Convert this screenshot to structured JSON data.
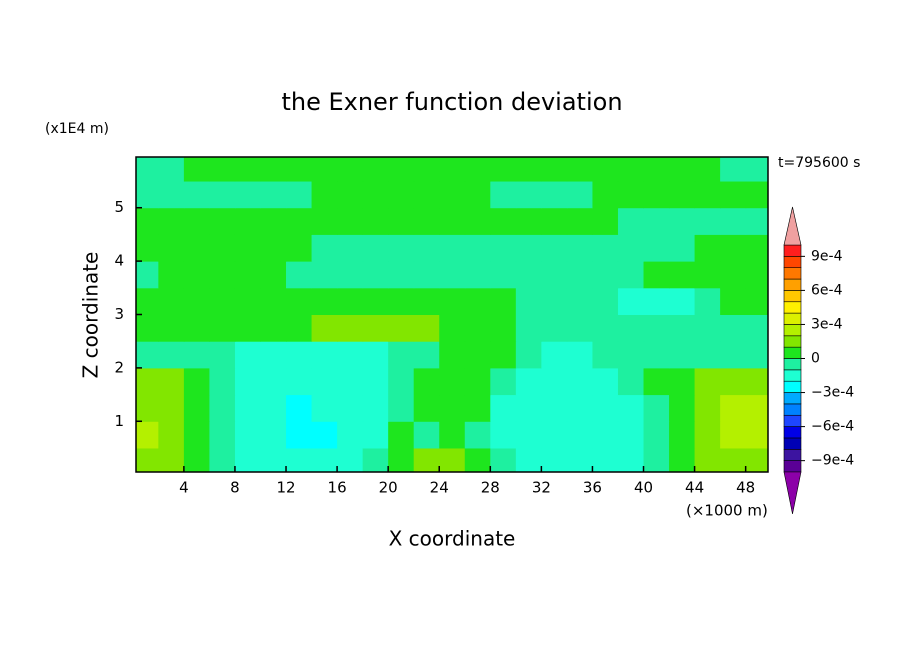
{
  "chart_data": {
    "type": "contour",
    "title": "the Exner function deviation",
    "xlabel": "X coordinate",
    "ylabel": "Z coordinate",
    "xunit": "(×1000 m)",
    "yunit": "(x1E4 m)",
    "annotation": "t=795600 s",
    "xlim": [
      0.25,
      49.75
    ],
    "ylim": [
      0.05,
      5.95
    ],
    "xticks": [
      4,
      8,
      12,
      16,
      20,
      24,
      28,
      32,
      36,
      40,
      44,
      48
    ],
    "yticks": [
      1,
      2,
      3,
      4,
      5
    ],
    "x": [
      1,
      3,
      5,
      7,
      9,
      11,
      13,
      15,
      17,
      19,
      21,
      23,
      25,
      27,
      29,
      31,
      33,
      35,
      37,
      39,
      41,
      43,
      45,
      47,
      49
    ],
    "y": [
      0.25,
      0.75,
      1.25,
      1.75,
      2.25,
      2.75,
      3.25,
      3.75,
      4.25,
      4.75,
      5.25,
      5.75
    ],
    "values": [
      [
        0.00015,
        0.00015,
        5e-05,
        -5e-05,
        -0.00015,
        -0.00015,
        -0.00015,
        -0.00015,
        -0.00015,
        -5e-05,
        5e-05,
        0.00015,
        0.00015,
        5e-05,
        -5e-05,
        -0.00015,
        -0.00015,
        -0.00015,
        -0.00015,
        -0.00015,
        -5e-05,
        5e-05,
        0.00015,
        0.00015,
        0.00015
      ],
      [
        0.00025,
        0.00015,
        5e-05,
        -5e-05,
        -0.00015,
        -0.00015,
        -0.00025,
        -0.00025,
        -0.00015,
        -0.00015,
        5e-05,
        -5e-05,
        5e-05,
        -5e-05,
        -0.00015,
        -0.00015,
        -0.00015,
        -0.00015,
        -0.00015,
        -0.00015,
        -5e-05,
        5e-05,
        0.00015,
        0.00025,
        0.00025
      ],
      [
        0.00015,
        0.00015,
        5e-05,
        -5e-05,
        -0.00015,
        -0.00015,
        -0.00025,
        -0.00015,
        -0.00015,
        -0.00015,
        -5e-05,
        5e-05,
        5e-05,
        5e-05,
        -0.00015,
        -0.00015,
        -0.00015,
        -0.00015,
        -0.00015,
        -0.00015,
        -5e-05,
        5e-05,
        0.00015,
        0.00025,
        0.00025
      ],
      [
        0.00015,
        0.00015,
        5e-05,
        -5e-05,
        -0.00015,
        -0.00015,
        -0.00015,
        -0.00015,
        -0.00015,
        -0.00015,
        -5e-05,
        5e-05,
        5e-05,
        5e-05,
        -5e-05,
        -0.00015,
        -0.00015,
        -0.00015,
        -0.00015,
        -5e-05,
        5e-05,
        5e-05,
        0.00015,
        0.00015,
        0.00015
      ],
      [
        -5e-05,
        -5e-05,
        -5e-05,
        -5e-05,
        -0.00015,
        -0.00015,
        -0.00015,
        -0.00015,
        -0.00015,
        -0.00015,
        -5e-05,
        -5e-05,
        5e-05,
        5e-05,
        5e-05,
        -5e-05,
        -0.00015,
        -0.00015,
        -5e-05,
        -5e-05,
        -5e-05,
        -5e-05,
        -5e-05,
        -5e-05,
        -5e-05
      ],
      [
        5e-05,
        5e-05,
        5e-05,
        5e-05,
        5e-05,
        5e-05,
        5e-05,
        0.00015,
        0.00015,
        0.00015,
        0.00015,
        0.00015,
        5e-05,
        5e-05,
        5e-05,
        -5e-05,
        -5e-05,
        -5e-05,
        -5e-05,
        -5e-05,
        -5e-05,
        -5e-05,
        -5e-05,
        -5e-05,
        -5e-05
      ],
      [
        5e-05,
        5e-05,
        5e-05,
        5e-05,
        5e-05,
        5e-05,
        5e-05,
        5e-05,
        5e-05,
        5e-05,
        5e-05,
        5e-05,
        5e-05,
        5e-05,
        5e-05,
        -5e-05,
        -5e-05,
        -5e-05,
        -5e-05,
        -0.00015,
        -0.00015,
        -0.00015,
        -5e-05,
        5e-05,
        5e-05
      ],
      [
        -5e-05,
        5e-05,
        5e-05,
        5e-05,
        5e-05,
        5e-05,
        -5e-05,
        -5e-05,
        -5e-05,
        -5e-05,
        -5e-05,
        -5e-05,
        -5e-05,
        -5e-05,
        -5e-05,
        -5e-05,
        -5e-05,
        -5e-05,
        -5e-05,
        -5e-05,
        5e-05,
        5e-05,
        5e-05,
        5e-05,
        5e-05
      ],
      [
        5e-05,
        5e-05,
        5e-05,
        5e-05,
        5e-05,
        5e-05,
        5e-05,
        -5e-05,
        -5e-05,
        -5e-05,
        -5e-05,
        -5e-05,
        -5e-05,
        -5e-05,
        -5e-05,
        -5e-05,
        -5e-05,
        -5e-05,
        -5e-05,
        -5e-05,
        -5e-05,
        -5e-05,
        5e-05,
        5e-05,
        5e-05
      ],
      [
        5e-05,
        5e-05,
        5e-05,
        5e-05,
        5e-05,
        5e-05,
        5e-05,
        5e-05,
        5e-05,
        5e-05,
        5e-05,
        5e-05,
        5e-05,
        5e-05,
        5e-05,
        5e-05,
        5e-05,
        5e-05,
        5e-05,
        -5e-05,
        -5e-05,
        -5e-05,
        -5e-05,
        -5e-05,
        -5e-05
      ],
      [
        -5e-05,
        -5e-05,
        -5e-05,
        -5e-05,
        -5e-05,
        -5e-05,
        -5e-05,
        5e-05,
        5e-05,
        5e-05,
        5e-05,
        5e-05,
        5e-05,
        5e-05,
        -5e-05,
        -5e-05,
        -5e-05,
        -5e-05,
        5e-05,
        5e-05,
        5e-05,
        5e-05,
        5e-05,
        5e-05,
        5e-05
      ],
      [
        -5e-05,
        -5e-05,
        5e-05,
        5e-05,
        5e-05,
        5e-05,
        5e-05,
        5e-05,
        5e-05,
        5e-05,
        5e-05,
        5e-05,
        5e-05,
        5e-05,
        5e-05,
        5e-05,
        5e-05,
        5e-05,
        5e-05,
        5e-05,
        5e-05,
        5e-05,
        5e-05,
        -5e-05,
        -5e-05
      ]
    ],
    "levels": [
      -0.001,
      -0.0009,
      -0.0008,
      -0.0007,
      -0.0006,
      -0.0005,
      -0.0004,
      -0.0003,
      -0.0002,
      -0.0001,
      0,
      0.0001,
      0.0002,
      0.0003,
      0.0004,
      0.0005,
      0.0006,
      0.0007,
      0.0008,
      0.0009,
      0.001
    ],
    "colors": [
      "#8c00a8",
      "#5a0096",
      "#3c14a0",
      "#0000b4",
      "#0000e6",
      "#1e46ff",
      "#0082ff",
      "#00aaff",
      "#00ffff",
      "#1effd2",
      "#1ef0a0",
      "#1ee61e",
      "#82e600",
      "#b4f000",
      "#dcf000",
      "#fff000",
      "#ffc800",
      "#ffa000",
      "#ff7800",
      "#ff4600",
      "#ff1e1e",
      "#f0a0a0"
    ],
    "colorbar_ticks": [
      {
        "value": 0.0009,
        "label": "9e-4"
      },
      {
        "value": 0.0006,
        "label": "6e-4"
      },
      {
        "value": 0.0003,
        "label": "3e-4"
      },
      0,
      {
        "value": -0.0003,
        "label": "−3e-4"
      },
      {
        "value": -0.0006,
        "label": "−6e-4"
      },
      {
        "value": -0.0009,
        "label": "−9e-4"
      }
    ]
  }
}
